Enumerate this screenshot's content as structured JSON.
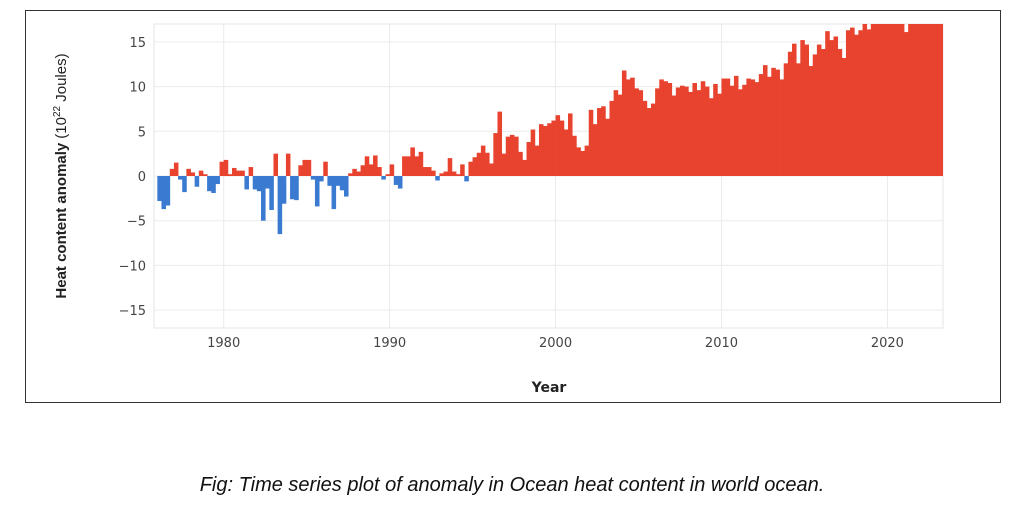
{
  "chart_data": {
    "type": "bar",
    "title": "",
    "xlabel": "Year",
    "ylabel": "Heat content anomaly",
    "ylabel_unit_prefix": "(10",
    "ylabel_unit_exp": "22",
    "ylabel_unit_suffix": " Joules)",
    "xlim": [
      1975.8,
      2023.35
    ],
    "ylim": [
      -17,
      17
    ],
    "x_start": 1976.0,
    "x_step": 0.25,
    "xticks": [
      1980,
      1990,
      2000,
      2010,
      2020
    ],
    "xtick_labels": [
      "1980",
      "1990",
      "2000",
      "2010",
      "2020"
    ],
    "yticks": [
      15,
      10,
      5,
      0,
      -5,
      -10,
      -15
    ],
    "ytick_labels": [
      "15",
      "10",
      "5",
      "0",
      "−5",
      "−10",
      "−15"
    ],
    "grid": true,
    "positive_color": "#e8432f",
    "negative_color": "#3a7ad0",
    "values": [
      -2.8,
      -3.7,
      -3.3,
      0.8,
      1.5,
      -0.4,
      -1.8,
      0.8,
      0.4,
      -1.2,
      0.6,
      0.2,
      -1.7,
      -1.9,
      -0.9,
      1.6,
      1.8,
      0.2,
      0.9,
      0.6,
      0.6,
      -1.5,
      1.0,
      -1.5,
      -1.7,
      -5.0,
      -1.4,
      -3.8,
      2.5,
      -6.5,
      -3.1,
      2.5,
      -2.6,
      -2.7,
      1.2,
      1.8,
      1.8,
      -0.4,
      -3.4,
      -0.6,
      1.6,
      -1.1,
      -3.7,
      -1.1,
      -1.6,
      -2.3,
      0.3,
      0.8,
      0.5,
      1.2,
      2.2,
      1.3,
      2.3,
      1.0,
      -0.4,
      0.2,
      1.3,
      -1.0,
      -1.4,
      2.2,
      2.2,
      3.2,
      2.2,
      2.7,
      1.0,
      1.0,
      0.6,
      -0.5,
      0.3,
      0.5,
      2.0,
      0.5,
      0.2,
      1.3,
      -0.6,
      1.6,
      2.1,
      2.6,
      3.4,
      2.6,
      1.4,
      4.8,
      7.2,
      2.5,
      4.4,
      4.6,
      4.4,
      2.7,
      1.8,
      3.8,
      5.2,
      3.4,
      5.8,
      5.6,
      5.9,
      6.2,
      6.8,
      6.2,
      5.2,
      7.0,
      4.5,
      3.2,
      2.8,
      3.4,
      7.4,
      5.8,
      7.6,
      7.8,
      6.4,
      8.4,
      9.6,
      9.1,
      11.8,
      10.8,
      11.0,
      9.8,
      9.6,
      8.4,
      7.6,
      8.1,
      9.8,
      10.8,
      10.6,
      10.4,
      9.0,
      9.9,
      10.1,
      10.0,
      9.4,
      10.4,
      9.6,
      10.6,
      10.0,
      8.7,
      10.3,
      9.2,
      10.9,
      10.9,
      10.1,
      11.2,
      9.7,
      10.2,
      10.9,
      10.8,
      10.5,
      11.4,
      12.4,
      11.1,
      12.1,
      11.9,
      10.8,
      12.6,
      13.9,
      14.8,
      12.6,
      15.2,
      14.7,
      12.3,
      13.6,
      14.7,
      14.2,
      16.2,
      15.2,
      15.6,
      14.2,
      13.2,
      16.3,
      16.6,
      15.8,
      16.3,
      17,
      16.4,
      17,
      17,
      17,
      17,
      17,
      17,
      17,
      17,
      16.1,
      17,
      17,
      17,
      17,
      17,
      17,
      17,
      17,
      17
    ]
  },
  "caption": "Fig: Time series plot of anomaly in Ocean heat content in world ocean."
}
